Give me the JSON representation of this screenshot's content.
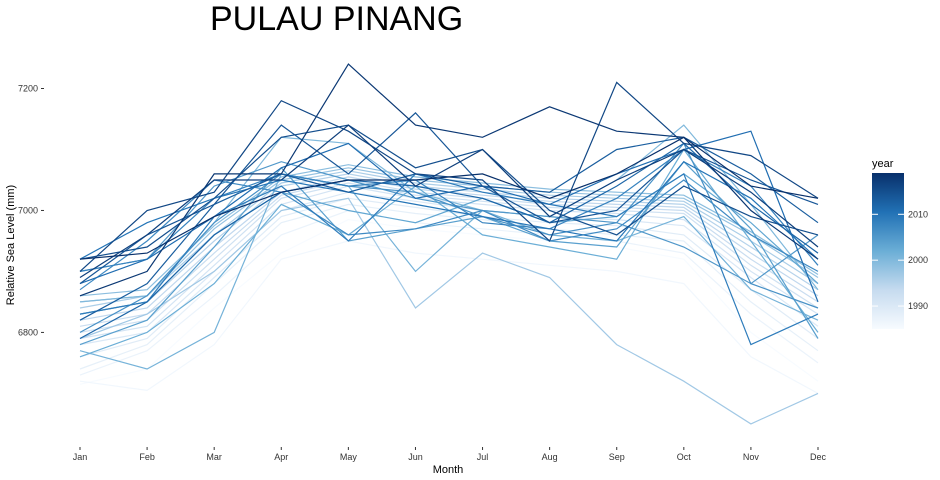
{
  "chart_data": {
    "type": "line",
    "title": "PULAU PINANG",
    "xlabel": "Month",
    "ylabel": "Relative Sea Level (mm)",
    "categories": [
      "Jan",
      "Feb",
      "Mar",
      "Apr",
      "May",
      "Jun",
      "Jul",
      "Aug",
      "Sep",
      "Oct",
      "Nov",
      "Dec"
    ],
    "ylim": [
      6640,
      7250
    ],
    "yticks": [
      6800,
      7000,
      7200
    ],
    "grid": false,
    "legend": {
      "title": "year",
      "placement": "right",
      "type": "colorbar",
      "range": [
        1985,
        2019
      ],
      "ticks": [
        1990,
        2000,
        2010
      ],
      "colors": [
        "#f7fbff",
        "#c6dbef",
        "#6baed6",
        "#2171b5",
        "#08306b"
      ]
    },
    "series": [
      {
        "year": 1985,
        "values": [
          6715,
          6740,
          6840,
          6930,
          6985,
          6970,
          6960,
          6950,
          6940,
          6920,
          6800,
          6720
        ]
      },
      {
        "year": 1986,
        "values": [
          6720,
          6705,
          6780,
          6920,
          6950,
          6930,
          6920,
          6910,
          6900,
          6880,
          6760,
          6700
        ]
      },
      {
        "year": 1987,
        "values": [
          6730,
          6770,
          6860,
          6960,
          7000,
          6980,
          6970,
          6960,
          6950,
          6930,
          6830,
          6750
        ]
      },
      {
        "year": 1988,
        "values": [
          6740,
          6780,
          6880,
          6980,
          7010,
          6995,
          6985,
          6970,
          6960,
          6950,
          6850,
          6770
        ]
      },
      {
        "year": 1989,
        "values": [
          6760,
          6790,
          6890,
          6990,
          7020,
          7005,
          6990,
          6980,
          6975,
          6960,
          6870,
          6790
        ]
      },
      {
        "year": 1990,
        "values": [
          6780,
          6800,
          6900,
          7000,
          7030,
          7015,
          7000,
          6990,
          6985,
          6975,
          6890,
          6810
        ]
      },
      {
        "year": 1991,
        "values": [
          6790,
          6810,
          6910,
          7010,
          7040,
          7020,
          7010,
          7000,
          6995,
          6985,
          6900,
          6830
        ]
      },
      {
        "year": 1992,
        "values": [
          6800,
          6820,
          6920,
          7020,
          7045,
          7025,
          7015,
          7005,
          7000,
          6995,
          6910,
          6840
        ]
      },
      {
        "year": 1993,
        "values": [
          6810,
          6830,
          6930,
          7025,
          7050,
          7030,
          7020,
          7010,
          7005,
          7000,
          6920,
          6850
        ]
      },
      {
        "year": 1994,
        "values": [
          6820,
          6840,
          6940,
          7030,
          7055,
          7035,
          7025,
          7015,
          7010,
          7005,
          6930,
          6860
        ]
      },
      {
        "year": 1995,
        "values": [
          6830,
          6850,
          6950,
          7040,
          7060,
          7040,
          7030,
          7020,
          7015,
          7010,
          6940,
          6870
        ]
      },
      {
        "year": 1996,
        "values": [
          6840,
          6860,
          6960,
          7045,
          7065,
          7045,
          7035,
          7025,
          7020,
          7015,
          6950,
          6880
        ]
      },
      {
        "year": 1997,
        "values": [
          6790,
          6830,
          6900,
          7000,
          7020,
          6840,
          6930,
          6890,
          6780,
          6720,
          6650,
          6700
        ]
      },
      {
        "year": 1998,
        "values": [
          6850,
          6860,
          6970,
          7050,
          7070,
          7050,
          7040,
          7030,
          7025,
          7020,
          6960,
          6890
        ]
      },
      {
        "year": 1999,
        "values": [
          6860,
          6870,
          6975,
          7055,
          7075,
          7055,
          7045,
          7035,
          7030,
          7025,
          6965,
          6895
        ]
      },
      {
        "year": 2000,
        "values": [
          6850,
          6860,
          6980,
          7120,
          7110,
          7030,
          7000,
          6990,
          7050,
          7140,
          7010,
          6870
        ]
      },
      {
        "year": 2001,
        "values": [
          6770,
          6740,
          6800,
          7060,
          7040,
          6900,
          7000,
          6960,
          6950,
          6990,
          6870,
          6820
        ]
      },
      {
        "year": 2002,
        "values": [
          6760,
          6800,
          6880,
          7010,
          6960,
          7040,
          6960,
          6940,
          6920,
          7100,
          6950,
          6800
        ]
      },
      {
        "year": 2003,
        "values": [
          6830,
          6850,
          6960,
          7030,
          7000,
          6980,
          7020,
          6980,
          6990,
          7060,
          6980,
          6880
        ]
      },
      {
        "year": 2004,
        "values": [
          6780,
          6820,
          6940,
          7070,
          6950,
          6970,
          6990,
          6950,
          6940,
          7080,
          6970,
          6790
        ]
      },
      {
        "year": 2005,
        "values": [
          6900,
          6920,
          7040,
          7080,
          7050,
          7020,
          7000,
          6990,
          6980,
          6940,
          6880,
          6960
        ]
      },
      {
        "year": 2006,
        "values": [
          6800,
          6860,
          6980,
          7060,
          7040,
          7030,
          6990,
          6960,
          6980,
          7110,
          6880,
          6840
        ]
      },
      {
        "year": 2007,
        "values": [
          6870,
          6950,
          7050,
          7030,
          6960,
          6970,
          7000,
          6950,
          6970,
          7050,
          6960,
          6900
        ]
      },
      {
        "year": 2008,
        "values": [
          6900,
          6920,
          7020,
          7060,
          7040,
          7050,
          6980,
          6970,
          7020,
          7100,
          7040,
          6910
        ]
      },
      {
        "year": 2009,
        "values": [
          6830,
          6850,
          6990,
          7040,
          6950,
          7060,
          7030,
          7010,
          6990,
          7060,
          6780,
          6830
        ]
      },
      {
        "year": 2010,
        "values": [
          6920,
          6980,
          7020,
          7050,
          7030,
          7010,
          6990,
          6970,
          6950,
          7080,
          7020,
          6920
        ]
      },
      {
        "year": 2011,
        "values": [
          6880,
          6920,
          6990,
          7070,
          7110,
          7020,
          7040,
          7010,
          7060,
          7100,
          7130,
          6850
        ]
      },
      {
        "year": 2012,
        "values": [
          6790,
          6850,
          6960,
          7030,
          7050,
          7040,
          7020,
          6980,
          7040,
          7110,
          7010,
          6930
        ]
      },
      {
        "year": 2013,
        "values": [
          6820,
          6880,
          7010,
          7060,
          7030,
          7060,
          7040,
          7030,
          7100,
          7120,
          7060,
          6980
        ]
      },
      {
        "year": 2014,
        "values": [
          6880,
          6960,
          7010,
          7140,
          7060,
          7160,
          7040,
          6980,
          7000,
          7100,
          7050,
          7010
        ]
      },
      {
        "year": 2015,
        "values": [
          6920,
          6940,
          7020,
          7120,
          7140,
          7070,
          7100,
          7000,
          6960,
          7040,
          6990,
          6960
        ]
      },
      {
        "year": 2016,
        "values": [
          6900,
          7000,
          7030,
          7180,
          7130,
          7060,
          7050,
          6950,
          7210,
          7110,
          7090,
          7020
        ]
      },
      {
        "year": 2017,
        "values": [
          6890,
          6960,
          7050,
          7050,
          7140,
          7040,
          7100,
          6990,
          7050,
          7100,
          7030,
          6940
        ]
      },
      {
        "year": 2018,
        "values": [
          6860,
          6900,
          7060,
          7060,
          7240,
          7140,
          7120,
          7170,
          7130,
          7120,
          7000,
          6920
        ]
      },
      {
        "year": 2019,
        "values": [
          6920,
          6930,
          6990,
          7030,
          7050,
          7050,
          7060,
          7020,
          7060,
          7120,
          7040,
          7020
        ]
      }
    ]
  }
}
